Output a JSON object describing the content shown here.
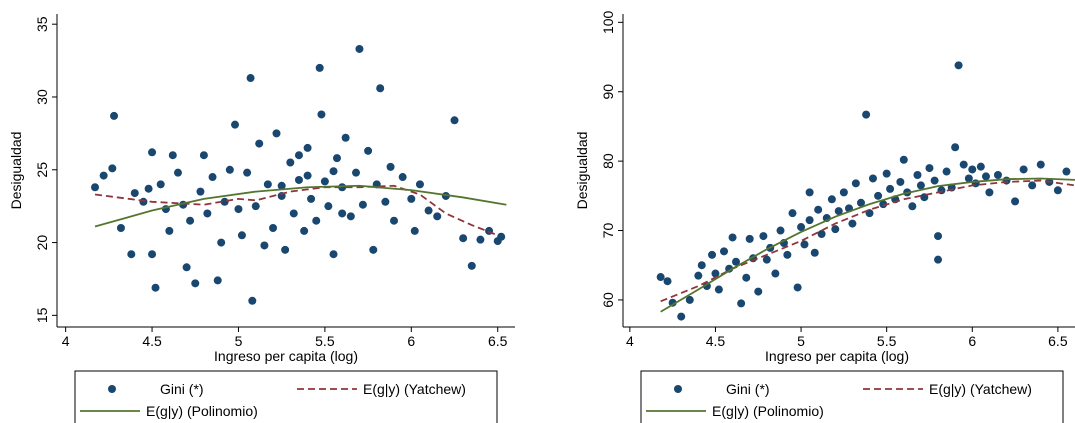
{
  "chart_data": [
    {
      "type": "scatter",
      "xlabel": "Ingreso per capita (log)",
      "ylabel": "Desigualdad",
      "xlim": [
        3.95,
        6.6
      ],
      "ylim": [
        14.2,
        35.7
      ],
      "xticks": [
        4,
        4.5,
        5,
        5.5,
        6,
        6.5
      ],
      "yticks": [
        15,
        20,
        25,
        30,
        35
      ],
      "series": [
        {
          "name": "Gini (*)",
          "kind": "scatter",
          "color": "#1a476f",
          "x": [
            4.17,
            4.22,
            4.28,
            4.27,
            4.32,
            4.38,
            4.4,
            4.45,
            4.48,
            4.5,
            4.5,
            4.52,
            4.55,
            4.58,
            4.6,
            4.62,
            4.65,
            4.68,
            4.7,
            4.72,
            4.75,
            4.78,
            4.8,
            4.82,
            4.85,
            4.88,
            4.9,
            4.92,
            4.95,
            4.98,
            5.0,
            5.02,
            5.05,
            5.07,
            5.08,
            5.1,
            5.12,
            5.15,
            5.17,
            5.2,
            5.22,
            5.25,
            5.27,
            5.3,
            5.32,
            5.35,
            5.38,
            5.4,
            5.42,
            5.45,
            5.47,
            5.48,
            5.5,
            5.52,
            5.55,
            5.57,
            5.6,
            5.62,
            5.65,
            5.68,
            5.7,
            5.72,
            5.75,
            5.78,
            5.8,
            5.82,
            5.85,
            5.88,
            5.9,
            5.95,
            6.0,
            6.02,
            6.05,
            6.1,
            6.15,
            6.2,
            6.25,
            6.3,
            6.35,
            6.4,
            6.45,
            6.5,
            6.52,
            5.55,
            5.35,
            5.25,
            5.6,
            5.4
          ],
          "values": [
            23.8,
            24.6,
            28.7,
            25.1,
            21.0,
            19.2,
            23.4,
            22.8,
            23.7,
            26.2,
            19.2,
            16.9,
            24.0,
            22.3,
            20.8,
            26.0,
            24.8,
            22.6,
            18.3,
            21.5,
            17.2,
            23.5,
            26.0,
            22.0,
            24.5,
            17.4,
            20.0,
            22.8,
            25.0,
            28.1,
            22.3,
            20.5,
            24.8,
            31.3,
            16.0,
            22.5,
            26.8,
            19.8,
            24.0,
            21.0,
            27.5,
            23.2,
            19.5,
            25.5,
            22.0,
            24.3,
            20.8,
            26.5,
            23.0,
            21.5,
            32.0,
            28.8,
            24.2,
            22.5,
            19.2,
            25.8,
            23.8,
            27.2,
            21.8,
            24.8,
            33.3,
            22.6,
            26.3,
            19.5,
            24.0,
            30.6,
            22.8,
            25.2,
            21.5,
            24.5,
            23.0,
            20.8,
            24.0,
            22.2,
            21.8,
            23.2,
            28.4,
            20.3,
            18.4,
            20.2,
            20.8,
            20.1,
            20.4,
            24.9,
            26.0,
            23.9,
            22.0,
            24.6
          ]
        },
        {
          "name": "E(g|y) (Yatchew)",
          "kind": "line",
          "style": "dashed",
          "color": "#90353b",
          "x": [
            4.17,
            4.5,
            4.8,
            5.0,
            5.1,
            5.3,
            5.5,
            5.7,
            5.9,
            6.05,
            6.2,
            6.35,
            6.5
          ],
          "values": [
            23.3,
            22.8,
            22.6,
            23.0,
            22.9,
            23.5,
            23.8,
            23.8,
            23.9,
            23.3,
            22.0,
            21.2,
            20.5
          ]
        },
        {
          "name": "E(g|y) (Polinomio)",
          "kind": "line",
          "style": "solid",
          "color": "#55752f",
          "x": [
            4.17,
            4.5,
            4.8,
            5.1,
            5.4,
            5.7,
            6.0,
            6.3,
            6.55
          ],
          "values": [
            21.1,
            22.2,
            23.0,
            23.5,
            23.8,
            23.9,
            23.6,
            23.1,
            22.6
          ]
        }
      ]
    },
    {
      "type": "scatter",
      "xlabel": "Ingreso per capita (log)",
      "ylabel": "Desigualdad",
      "xlim": [
        3.96,
        6.6
      ],
      "ylim": [
        56.1,
        101.2
      ],
      "xticks": [
        4,
        4.5,
        5,
        5.5,
        6,
        6.5
      ],
      "yticks": [
        60,
        70,
        80,
        90,
        100
      ],
      "series": [
        {
          "name": "Gini (*)",
          "kind": "scatter",
          "color": "#1a476f",
          "x": [
            4.18,
            4.22,
            4.25,
            4.3,
            4.35,
            4.4,
            4.42,
            4.45,
            4.48,
            4.5,
            4.52,
            4.55,
            4.58,
            4.6,
            4.62,
            4.65,
            4.68,
            4.7,
            4.72,
            4.75,
            4.78,
            4.8,
            4.82,
            4.85,
            4.88,
            4.9,
            4.92,
            4.95,
            4.98,
            5.0,
            5.02,
            5.05,
            5.08,
            5.1,
            5.12,
            5.15,
            5.18,
            5.2,
            5.22,
            5.25,
            5.28,
            5.3,
            5.32,
            5.35,
            5.38,
            5.4,
            5.42,
            5.45,
            5.48,
            5.5,
            5.52,
            5.55,
            5.58,
            5.6,
            5.62,
            5.65,
            5.68,
            5.7,
            5.72,
            5.75,
            5.78,
            5.8,
            5.82,
            5.85,
            5.88,
            5.9,
            5.92,
            5.95,
            5.98,
            6.0,
            6.02,
            6.05,
            6.08,
            6.1,
            6.15,
            6.2,
            6.25,
            6.3,
            6.35,
            6.4,
            6.45,
            6.5,
            6.55,
            5.8,
            5.05
          ],
          "values": [
            63.3,
            62.7,
            59.6,
            57.6,
            60.0,
            63.5,
            65.0,
            62.0,
            66.5,
            63.8,
            61.5,
            67.0,
            64.5,
            69.0,
            65.5,
            59.5,
            63.2,
            68.8,
            66.0,
            61.2,
            69.2,
            65.8,
            67.5,
            63.8,
            70.0,
            68.2,
            66.5,
            72.5,
            61.8,
            70.5,
            68.0,
            71.5,
            66.8,
            73.0,
            69.5,
            71.8,
            74.5,
            70.2,
            72.8,
            75.5,
            73.2,
            71.0,
            76.8,
            74.0,
            86.7,
            72.5,
            77.5,
            75.0,
            73.8,
            78.2,
            76.0,
            74.5,
            77.0,
            80.2,
            75.5,
            73.5,
            78.0,
            76.5,
            74.8,
            79.0,
            77.2,
            65.8,
            75.8,
            78.5,
            76.2,
            82.0,
            93.8,
            79.5,
            77.5,
            78.8,
            76.8,
            79.2,
            77.8,
            75.5,
            78.0,
            77.2,
            74.2,
            78.8,
            76.5,
            79.5,
            77.0,
            75.8,
            78.5,
            69.2,
            75.5
          ]
        },
        {
          "name": "E(g|y) (Yatchew)",
          "kind": "line",
          "style": "dashed",
          "color": "#90353b",
          "x": [
            4.18,
            4.4,
            4.6,
            4.8,
            5.0,
            5.2,
            5.4,
            5.6,
            5.8,
            6.0,
            6.2,
            6.4,
            6.6
          ],
          "values": [
            59.8,
            62.0,
            64.5,
            66.5,
            68.5,
            71.0,
            73.0,
            74.5,
            75.5,
            76.5,
            77.0,
            77.2,
            76.5
          ]
        },
        {
          "name": "E(g|y) (Polinomio)",
          "kind": "line",
          "style": "solid",
          "color": "#55752f",
          "x": [
            4.18,
            4.4,
            4.6,
            4.8,
            5.0,
            5.2,
            5.4,
            5.6,
            5.8,
            6.0,
            6.2,
            6.4,
            6.6
          ],
          "values": [
            58.3,
            61.5,
            64.5,
            67.3,
            69.8,
            72.0,
            73.8,
            75.3,
            76.4,
            77.0,
            77.4,
            77.5,
            77.3
          ]
        }
      ]
    }
  ]
}
